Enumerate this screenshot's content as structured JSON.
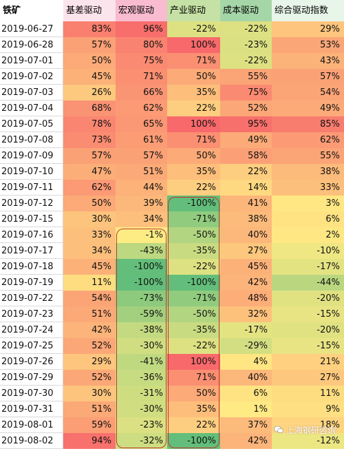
{
  "chart_data": {
    "type": "table",
    "title": "铁矿",
    "columns": [
      "基差驱动",
      "宏观驱动",
      "产业驱动",
      "成本驱动",
      "综合驱动指数"
    ],
    "header_colors": [
      "#fce4ec",
      "#f8bbd0",
      "#c5e1a5",
      "#a5d6a7",
      "#e8f5e9"
    ],
    "rows": [
      {
        "date": "2019-06-27",
        "values": [
          83,
          96,
          -22,
          -22,
          29
        ]
      },
      {
        "date": "2019-06-28",
        "values": [
          57,
          80,
          100,
          -23,
          53
        ]
      },
      {
        "date": "2019-07-01",
        "values": [
          50,
          75,
          71,
          -22,
          43
        ]
      },
      {
        "date": "2019-07-02",
        "values": [
          45,
          71,
          50,
          55,
          57
        ]
      },
      {
        "date": "2019-07-03",
        "values": [
          26,
          66,
          35,
          75,
          54
        ]
      },
      {
        "date": "2019-07-04",
        "values": [
          68,
          62,
          22,
          52,
          49
        ]
      },
      {
        "date": "2019-07-05",
        "values": [
          78,
          65,
          100,
          95,
          85
        ]
      },
      {
        "date": "2019-07-08",
        "values": [
          73,
          61,
          71,
          49,
          62
        ]
      },
      {
        "date": "2019-07-09",
        "values": [
          57,
          57,
          50,
          58,
          55
        ]
      },
      {
        "date": "2019-07-10",
        "values": [
          47,
          51,
          35,
          22,
          38
        ]
      },
      {
        "date": "2019-07-11",
        "values": [
          62,
          44,
          22,
          14,
          33
        ]
      },
      {
        "date": "2019-07-12",
        "values": [
          50,
          39,
          -100,
          41,
          3
        ]
      },
      {
        "date": "2019-07-15",
        "values": [
          30,
          34,
          -71,
          38,
          6
        ]
      },
      {
        "date": "2019-07-16",
        "values": [
          33,
          -1,
          -50,
          40,
          2
        ]
      },
      {
        "date": "2019-07-17",
        "values": [
          34,
          -43,
          -35,
          27,
          -10
        ]
      },
      {
        "date": "2019-07-18",
        "values": [
          45,
          -100,
          -22,
          45,
          -17
        ]
      },
      {
        "date": "2019-07-19",
        "values": [
          11,
          -100,
          -100,
          42,
          -44
        ]
      },
      {
        "date": "2019-07-22",
        "values": [
          54,
          -73,
          -71,
          48,
          -20
        ]
      },
      {
        "date": "2019-07-23",
        "values": [
          51,
          -59,
          -50,
          32,
          -15
        ]
      },
      {
        "date": "2019-07-24",
        "values": [
          42,
          -38,
          -35,
          -17,
          -20
        ]
      },
      {
        "date": "2019-07-25",
        "values": [
          52,
          -30,
          -22,
          -29,
          -15
        ]
      },
      {
        "date": "2019-07-26",
        "values": [
          29,
          -41,
          100,
          4,
          21
        ]
      },
      {
        "date": "2019-07-29",
        "values": [
          52,
          -36,
          71,
          40,
          27
        ]
      },
      {
        "date": "2019-07-30",
        "values": [
          30,
          -31,
          50,
          6,
          11
        ]
      },
      {
        "date": "2019-07-31",
        "values": [
          51,
          -30,
          35,
          1,
          9
        ]
      },
      {
        "date": "2019-08-01",
        "values": [
          59,
          -23,
          22,
          37,
          18
        ]
      },
      {
        "date": "2019-08-02",
        "values": [
          94,
          -32,
          -100,
          42,
          -12
        ]
      }
    ],
    "value_suffix": "%",
    "color_scale": {
      "low": "#63be7b",
      "mid": "#ffeb84",
      "high": "#f8696b",
      "min": -100,
      "max": 100
    },
    "highlight_frames": [
      {
        "column": "宏观驱动",
        "from": "2019-07-16",
        "to": "2019-08-02",
        "color": "#c0392b"
      },
      {
        "column": "产业驱动",
        "from": "2019-07-12",
        "to": "2019-08-02",
        "color": "#c0392b"
      }
    ]
  },
  "watermark": {
    "text": "上海钢研咨询",
    "icon": "wechat-icon"
  }
}
